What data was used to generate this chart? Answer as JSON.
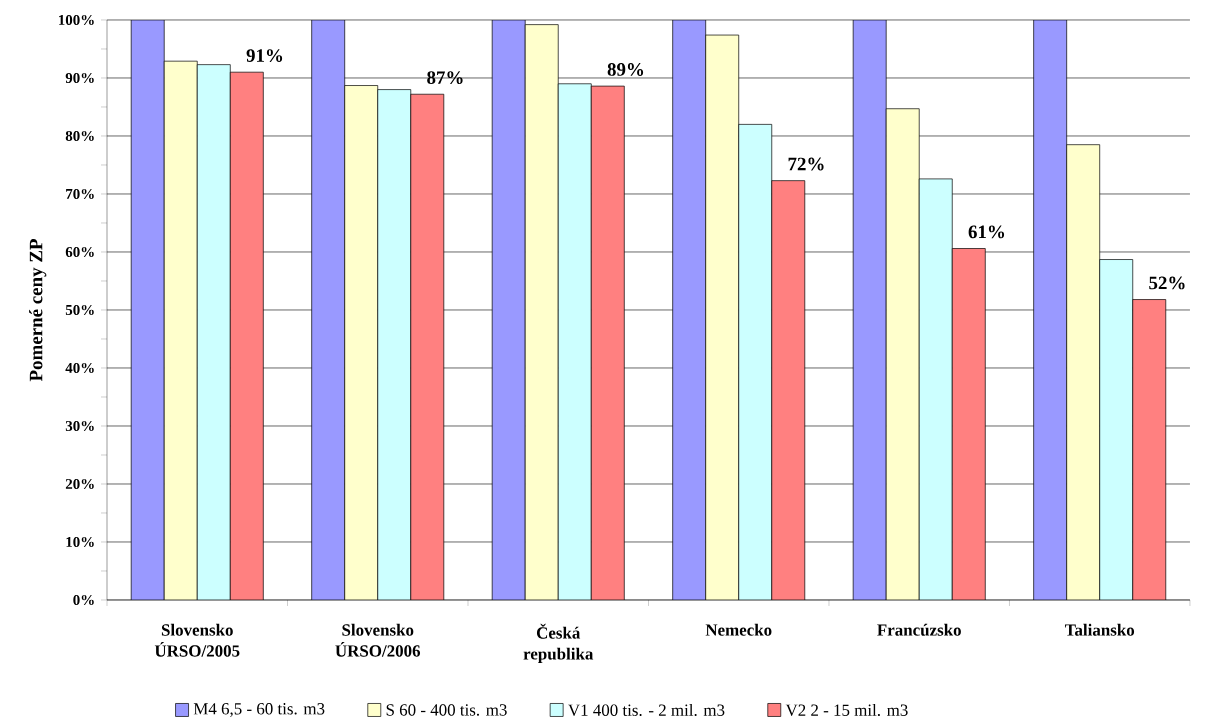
{
  "chart_data": {
    "type": "bar",
    "ylabel": "Pomerné ceny ZP",
    "categories": [
      "Slovensko ÚRSO/2005",
      "Slovensko ÚRSO/2006",
      "Česká republika",
      "Nemecko",
      "Francúzsko",
      "Taliansko"
    ],
    "series": [
      {
        "name": "M4 6,5 - 60 tis. m3",
        "color": "#9999ff",
        "values": [
          100,
          100,
          100,
          100,
          100,
          100
        ]
      },
      {
        "name": "S 60 - 400 tis. m3",
        "color": "#ffffcc",
        "values": [
          92.9,
          88.7,
          99.2,
          97.4,
          84.7,
          78.5
        ]
      },
      {
        "name": "V1 400 tis. - 2 mil. m3",
        "color": "#ccffff",
        "values": [
          92.3,
          88.0,
          89.0,
          82.0,
          72.6,
          58.7
        ]
      },
      {
        "name": "V2 2 - 15 mil. m3",
        "color": "#ff8080",
        "values": [
          91.0,
          87.2,
          88.6,
          72.3,
          60.6,
          51.8
        ],
        "value_labels": [
          "91%",
          "87%",
          "89%",
          "72%",
          "61%",
          "52%"
        ]
      }
    ],
    "ylim": [
      0,
      100
    ],
    "yticks": [
      {
        "value": 0,
        "label": "0%"
      },
      {
        "value": 5,
        "label": null
      },
      {
        "value": 10,
        "label": "10%"
      },
      {
        "value": 15,
        "label": null
      },
      {
        "value": 20,
        "label": "20%"
      },
      {
        "value": 25,
        "label": null
      },
      {
        "value": 30,
        "label": "30%"
      },
      {
        "value": 35,
        "label": null
      },
      {
        "value": 40,
        "label": "40%"
      },
      {
        "value": 45,
        "label": null
      },
      {
        "value": 50,
        "label": "50%"
      },
      {
        "value": 55,
        "label": null
      },
      {
        "value": 60,
        "label": "60%"
      },
      {
        "value": 65,
        "label": null
      },
      {
        "value": 70,
        "label": "70%"
      },
      {
        "value": 75,
        "label": null
      },
      {
        "value": 80,
        "label": "80%"
      },
      {
        "value": 85,
        "label": null
      },
      {
        "value": 90,
        "label": "90%"
      },
      {
        "value": 95,
        "label": null
      },
      {
        "value": 100,
        "label": "100%"
      }
    ],
    "grid": "y",
    "legend": "bottom"
  }
}
